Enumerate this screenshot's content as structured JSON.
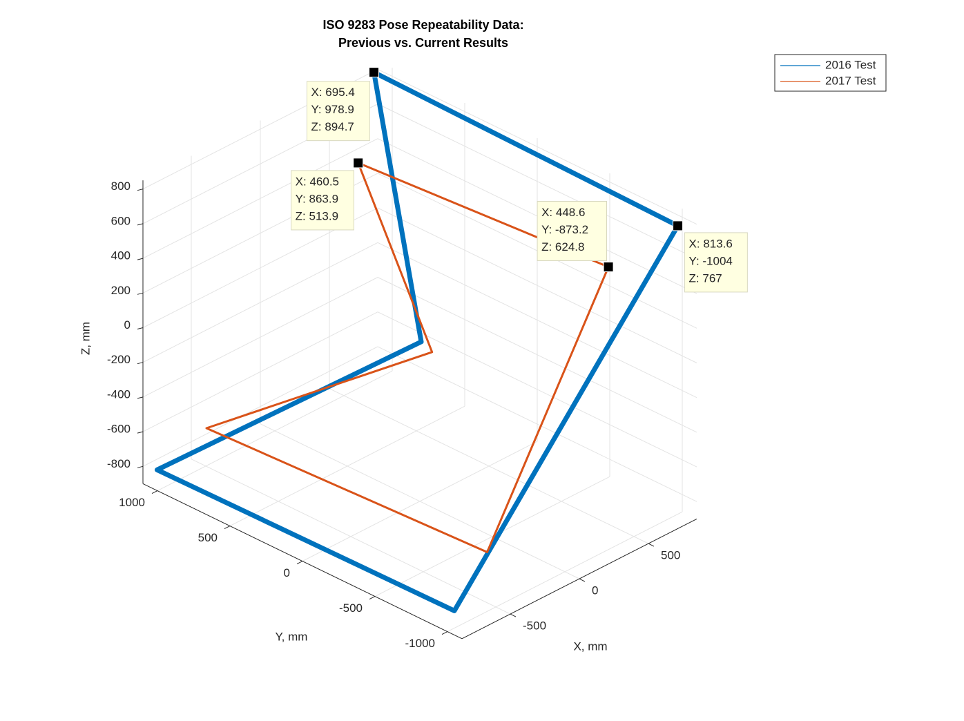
{
  "chart_data": {
    "type": "line3d",
    "title": [
      "ISO 9283 Pose Repeatability Data:",
      "Previous vs. Current Results"
    ],
    "xlabel": "X, mm",
    "ylabel": "Y, mm",
    "zlabel": "Z, mm",
    "xlim": [
      -850,
      850
    ],
    "ylim": [
      -1100,
      1100
    ],
    "zlim": [
      -900,
      850
    ],
    "xticks": [
      -500,
      0,
      500
    ],
    "yticks": [
      -1000,
      -500,
      0,
      500,
      1000
    ],
    "zticks": [
      -800,
      -600,
      -400,
      -200,
      0,
      200,
      400,
      600,
      800
    ],
    "grid": true,
    "legend": "upper right",
    "series": [
      {
        "name": "2016 Test",
        "color": "#0072bd",
        "x": [
          695.4,
          850,
          -800,
          -800,
          813.6,
          695.4
        ],
        "y": [
          978.9,
          800,
          1050,
          -1000,
          -1004,
          978.9
        ],
        "z": [
          894.7,
          -650,
          -820,
          -800,
          767,
          894.7
        ]
      },
      {
        "name": "2017 Test",
        "color": "#d95319",
        "x": [
          460.5,
          750,
          -600,
          -510,
          448.6,
          460.5
        ],
        "y": [
          863.9,
          630,
          900,
          -950,
          -873.2,
          863.9
        ],
        "z": [
          513.9,
          -600,
          -600,
          -600,
          624.8,
          513.9
        ]
      }
    ],
    "datatips": [
      {
        "x": 695.4,
        "y": 978.9,
        "z": 894.7,
        "labels": [
          "X: 695.4",
          "Y: 978.9",
          "Z: 894.7"
        ]
      },
      {
        "x": 460.5,
        "y": 863.9,
        "z": 513.9,
        "labels": [
          "X: 460.5",
          "Y: 863.9",
          "Z: 513.9"
        ]
      },
      {
        "x": 448.6,
        "y": -873.2,
        "z": 624.8,
        "labels": [
          "X: 448.6",
          "Y: -873.2",
          "Z: 624.8"
        ]
      },
      {
        "x": 813.6,
        "y": -1004,
        "z": 767,
        "labels": [
          "X: 813.6",
          "Y: -1004",
          "Z: 767"
        ]
      }
    ]
  }
}
